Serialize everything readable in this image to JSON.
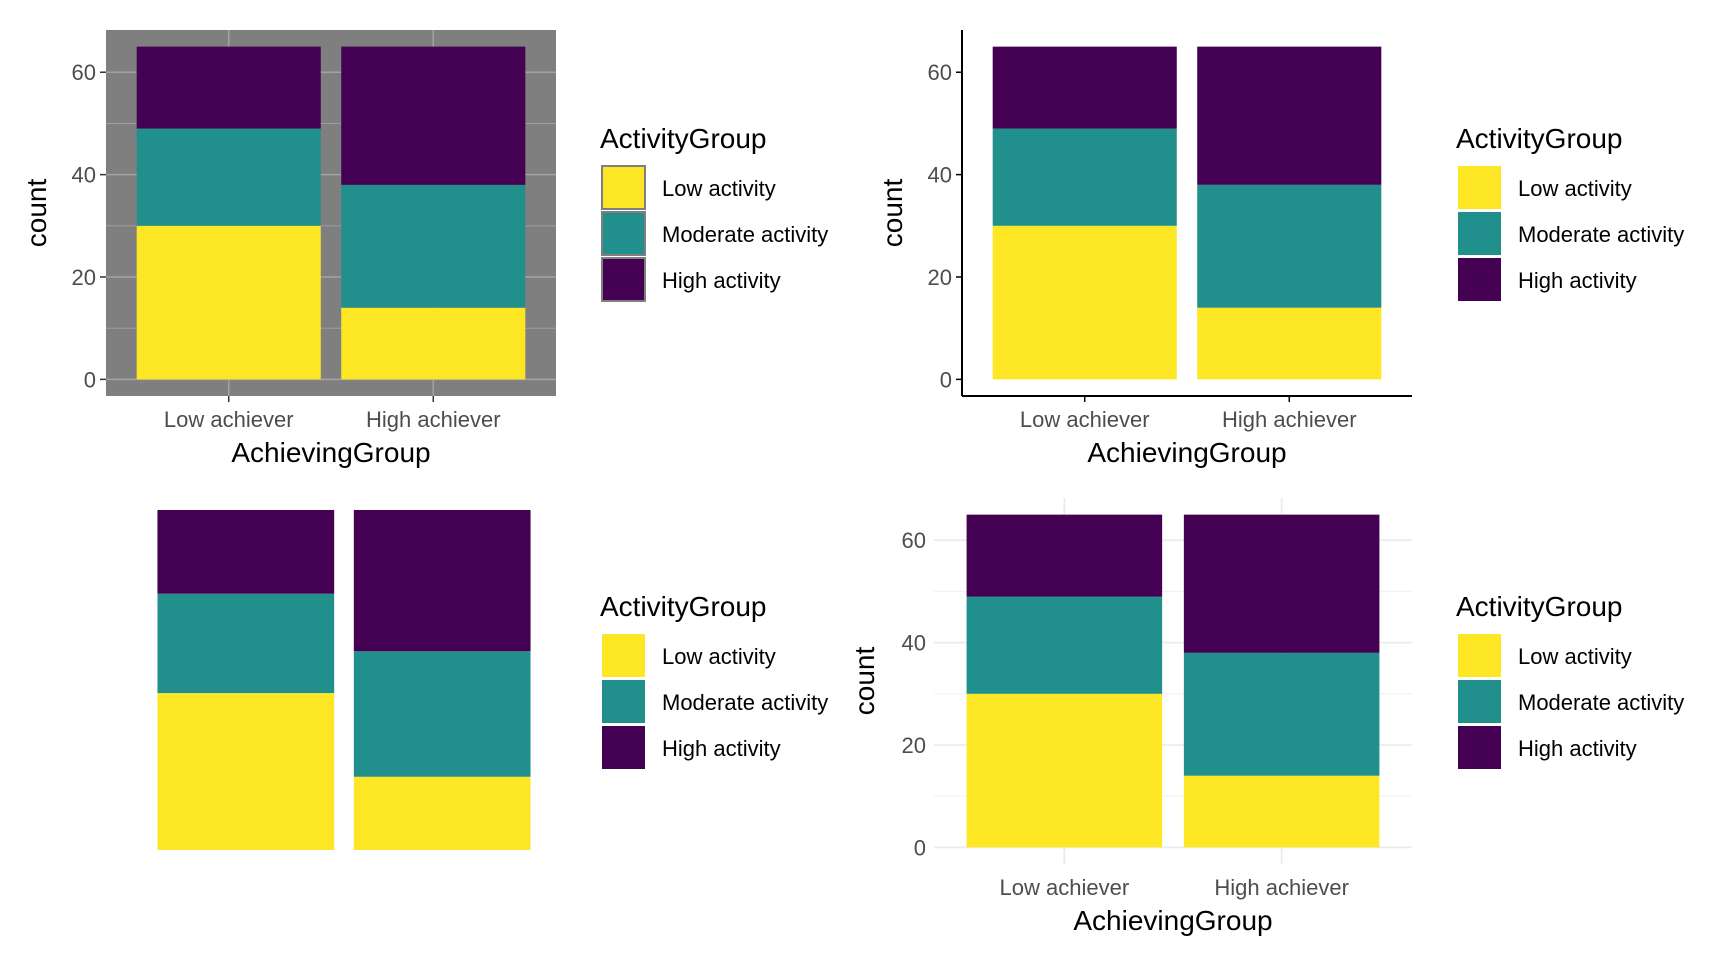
{
  "colors": {
    "Low activity": "#FDE725",
    "Moderate activity": "#21908C",
    "High activity": "#440154"
  },
  "chart_data": [
    {
      "type": "bar",
      "stacked": true,
      "theme": "grey-panel",
      "categories": [
        "Low achiever",
        "High achiever"
      ],
      "series": [
        {
          "name": "Low activity",
          "values": [
            30,
            14
          ]
        },
        {
          "name": "Moderate activity",
          "values": [
            19,
            24
          ]
        },
        {
          "name": "High activity",
          "values": [
            16,
            27
          ]
        }
      ],
      "xlabel": "AchievingGroup",
      "ylabel": "count",
      "yticks": [
        0,
        20,
        40,
        60
      ],
      "ylim": [
        -3.25,
        68.25
      ],
      "legend_title": "ActivityGroup",
      "legend_position": "right",
      "grid": true
    },
    {
      "type": "bar",
      "stacked": true,
      "theme": "classic",
      "categories": [
        "Low achiever",
        "High achiever"
      ],
      "series": [
        {
          "name": "Low activity",
          "values": [
            30,
            14
          ]
        },
        {
          "name": "Moderate activity",
          "values": [
            19,
            24
          ]
        },
        {
          "name": "High activity",
          "values": [
            16,
            27
          ]
        }
      ],
      "xlabel": "AchievingGroup",
      "ylabel": "count",
      "yticks": [
        0,
        20,
        40,
        60
      ],
      "ylim": [
        -3.25,
        68.25
      ],
      "legend_title": "ActivityGroup",
      "legend_position": "right",
      "grid": false
    },
    {
      "type": "bar",
      "stacked": true,
      "theme": "void",
      "categories": [
        "Low achiever",
        "High achiever"
      ],
      "series": [
        {
          "name": "Low activity",
          "values": [
            30,
            14
          ]
        },
        {
          "name": "Moderate activity",
          "values": [
            19,
            24
          ]
        },
        {
          "name": "High activity",
          "values": [
            16,
            27
          ]
        }
      ],
      "xlabel": "",
      "ylabel": "",
      "yticks": [],
      "ylim": [
        0,
        65
      ],
      "legend_title": "ActivityGroup",
      "legend_position": "right",
      "grid": false
    },
    {
      "type": "bar",
      "stacked": true,
      "theme": "minimal",
      "categories": [
        "Low achiever",
        "High achiever"
      ],
      "series": [
        {
          "name": "Low activity",
          "values": [
            30,
            14
          ]
        },
        {
          "name": "Moderate activity",
          "values": [
            19,
            24
          ]
        },
        {
          "name": "High activity",
          "values": [
            16,
            27
          ]
        }
      ],
      "xlabel": "AchievingGroup",
      "ylabel": "count",
      "yticks": [
        0,
        20,
        40,
        60
      ],
      "ylim": [
        -3.25,
        68.25
      ],
      "legend_title": "ActivityGroup",
      "legend_position": "right",
      "grid": true
    }
  ]
}
